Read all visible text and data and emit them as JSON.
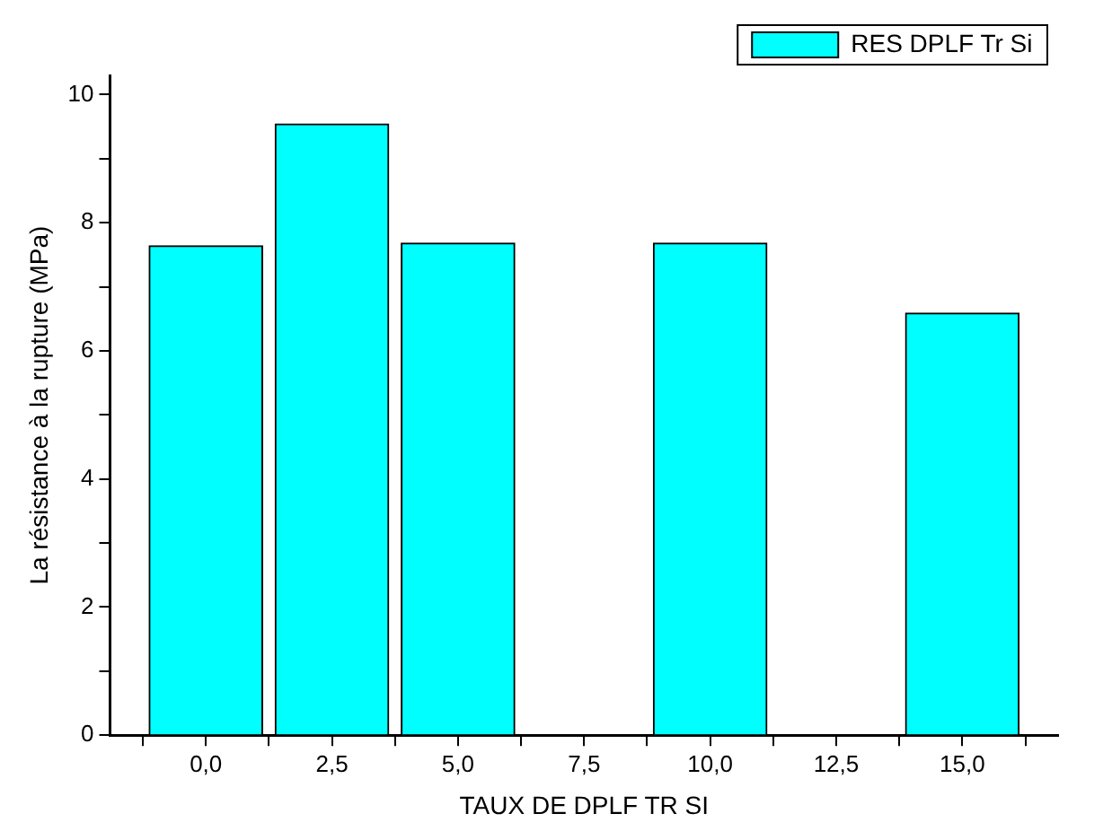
{
  "chart_data": {
    "type": "bar",
    "xlabel": "TAUX DE DPLF TR SI",
    "ylabel": "La résistance à la rupture (MPa)",
    "x": [
      0,
      2.5,
      5,
      10,
      15
    ],
    "series": [
      {
        "name": "RES DPLF Tr Si",
        "color": "#00ffff",
        "values": [
          7.64,
          9.54,
          7.68,
          7.68,
          6.59
        ]
      }
    ],
    "xlim": [
      -1.9,
      16.9
    ],
    "xticks": [
      {
        "value": -1.25,
        "label": null
      },
      {
        "value": 0,
        "label": "0,0"
      },
      {
        "value": 1.25,
        "label": null
      },
      {
        "value": 2.5,
        "label": "2,5"
      },
      {
        "value": 3.75,
        "label": null
      },
      {
        "value": 5,
        "label": "5,0"
      },
      {
        "value": 6.25,
        "label": null
      },
      {
        "value": 7.5,
        "label": "7,5"
      },
      {
        "value": 8.75,
        "label": null
      },
      {
        "value": 10,
        "label": "10,0"
      },
      {
        "value": 11.25,
        "label": null
      },
      {
        "value": 12.5,
        "label": "12,5"
      },
      {
        "value": 13.75,
        "label": null
      },
      {
        "value": 15,
        "label": "15,0"
      },
      {
        "value": 16.25,
        "label": null
      }
    ],
    "ylim": [
      0,
      10.3
    ],
    "yticks": [
      0,
      {
        "value": 1,
        "label": null
      },
      2,
      {
        "value": 3,
        "label": null
      },
      4,
      {
        "value": 5,
        "label": null
      },
      6,
      {
        "value": 7,
        "label": null
      },
      8,
      {
        "value": 9,
        "label": null
      },
      10
    ],
    "grid": false,
    "legend": "top right"
  }
}
